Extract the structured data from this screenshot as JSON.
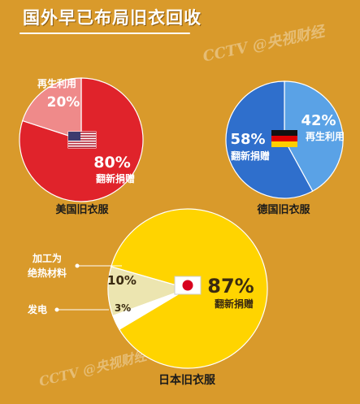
{
  "title": "国外早已布局旧衣回收",
  "watermark": {
    "top": "CCTV @央视财经",
    "bottom": "CCTV @央视财经"
  },
  "colors": {
    "background": "#d99a2b",
    "us_main": "#e0232b",
    "us_minor": "#ef8a8a",
    "de_main": "#2f6fcc",
    "de_minor": "#5aa2e6",
    "jp_main": "#ffd400",
    "jp_minor": "#ece5b0",
    "jp_tiny": "#ffffff"
  },
  "chart_data": [
    {
      "type": "pie",
      "title": "美国旧衣服",
      "flag": "us-flag",
      "slices": [
        {
          "label": "翻新捐赠",
          "value": 80,
          "value_text": "80%"
        },
        {
          "label": "再生利用",
          "value": 20,
          "value_text": "20%"
        }
      ]
    },
    {
      "type": "pie",
      "title": "德国旧衣服",
      "flag": "germany-flag",
      "slices": [
        {
          "label": "翻新捐赠",
          "value": 58,
          "value_text": "58%"
        },
        {
          "label": "再生利用",
          "value": 42,
          "value_text": "42%"
        }
      ]
    },
    {
      "type": "pie",
      "title": "日本旧衣服",
      "flag": "japan-flag",
      "slices": [
        {
          "label": "翻新捐赠",
          "value": 87,
          "value_text": "87%"
        },
        {
          "label": "加工为绝热材料",
          "value": 10,
          "value_text": "10%"
        },
        {
          "label": "发电",
          "value": 3,
          "value_text": "3%"
        }
      ]
    }
  ],
  "callouts": {
    "insulation_line1": "加工为",
    "insulation_line2": "绝热材料",
    "power": "发电"
  }
}
